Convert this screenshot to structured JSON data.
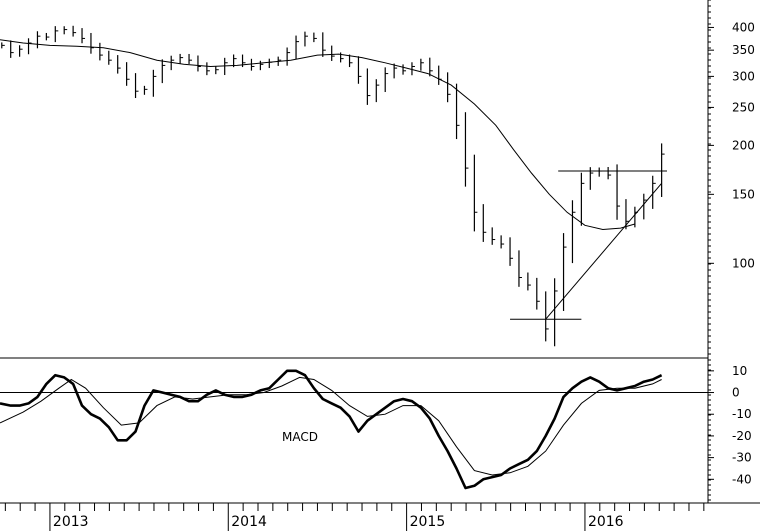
{
  "chart_data": [
    {
      "type": "ohlc-bar",
      "y_scale": "log",
      "ylim": [
        58,
        470
      ],
      "y_ticks": [
        100,
        150,
        200,
        250,
        300,
        350,
        400
      ],
      "x_range": [
        2012.72,
        2016.69
      ],
      "series": [
        {
          "style": "weekly-bars",
          "points": [
            [
              2012.73,
              360
            ],
            [
              2012.78,
              345
            ],
            [
              2012.83,
              352
            ],
            [
              2012.88,
              365
            ],
            [
              2012.93,
              380
            ],
            [
              2012.98,
              378
            ],
            [
              2013.03,
              392
            ],
            [
              2013.08,
              395
            ],
            [
              2013.13,
              388
            ],
            [
              2013.18,
              375
            ],
            [
              2013.23,
              355
            ],
            [
              2013.28,
              340
            ],
            [
              2013.33,
              330
            ],
            [
              2013.38,
              315
            ],
            [
              2013.43,
              295
            ],
            [
              2013.48,
              275
            ],
            [
              2013.53,
              278
            ],
            [
              2013.58,
              300
            ],
            [
              2013.63,
              320
            ],
            [
              2013.68,
              330
            ],
            [
              2013.73,
              335
            ],
            [
              2013.78,
              330
            ],
            [
              2013.83,
              318
            ],
            [
              2013.88,
              310
            ],
            [
              2013.93,
              312
            ],
            [
              2013.98,
              325
            ],
            [
              2014.03,
              333
            ],
            [
              2014.08,
              325
            ],
            [
              2014.13,
              318
            ],
            [
              2014.18,
              322
            ],
            [
              2014.23,
              326
            ],
            [
              2014.28,
              330
            ],
            [
              2014.33,
              345
            ],
            [
              2014.38,
              368
            ],
            [
              2014.43,
              380
            ],
            [
              2014.48,
              375
            ],
            [
              2014.53,
              350
            ],
            [
              2014.58,
              338
            ],
            [
              2014.63,
              333
            ],
            [
              2014.68,
              325
            ],
            [
              2014.73,
              300
            ],
            [
              2014.78,
              268
            ],
            [
              2014.83,
              285
            ],
            [
              2014.88,
              305
            ],
            [
              2014.93,
              315
            ],
            [
              2014.98,
              310
            ],
            [
              2015.03,
              318
            ],
            [
              2015.08,
              325
            ],
            [
              2015.13,
              310
            ],
            [
              2015.18,
              295
            ],
            [
              2015.23,
              270
            ],
            [
              2015.28,
              225
            ],
            [
              2015.33,
              175
            ],
            [
              2015.38,
              135
            ],
            [
              2015.43,
              120
            ],
            [
              2015.48,
              115
            ],
            [
              2015.53,
              112
            ],
            [
              2015.58,
              103
            ],
            [
              2015.63,
              92
            ],
            [
              2015.68,
              88
            ],
            [
              2015.73,
              80
            ],
            [
              2015.78,
              68
            ],
            [
              2015.83,
              85
            ],
            [
              2015.88,
              110
            ],
            [
              2015.93,
              135
            ],
            [
              2015.98,
              160
            ],
            [
              2016.03,
              170
            ],
            [
              2016.08,
              172
            ],
            [
              2016.13,
              168
            ],
            [
              2016.18,
              140
            ],
            [
              2016.23,
              128
            ],
            [
              2016.28,
              135
            ],
            [
              2016.33,
              145
            ],
            [
              2016.38,
              160
            ],
            [
              2016.43,
              190
            ]
          ]
        },
        {
          "style": "moving-average",
          "points": [
            [
              2012.72,
              372
            ],
            [
              2012.85,
              365
            ],
            [
              2013.0,
              360
            ],
            [
              2013.15,
              358
            ],
            [
              2013.3,
              355
            ],
            [
              2013.45,
              345
            ],
            [
              2013.6,
              330
            ],
            [
              2013.75,
              322
            ],
            [
              2013.9,
              318
            ],
            [
              2014.05,
              320
            ],
            [
              2014.2,
              325
            ],
            [
              2014.35,
              330
            ],
            [
              2014.5,
              340
            ],
            [
              2014.62,
              342
            ],
            [
              2014.75,
              335
            ],
            [
              2014.88,
              325
            ],
            [
              2015.0,
              315
            ],
            [
              2015.12,
              305
            ],
            [
              2015.25,
              285
            ],
            [
              2015.38,
              255
            ],
            [
              2015.5,
              225
            ],
            [
              2015.6,
              195
            ],
            [
              2015.7,
              170
            ],
            [
              2015.8,
              150
            ],
            [
              2015.9,
              135
            ],
            [
              2016.0,
              125
            ],
            [
              2016.1,
              122
            ],
            [
              2016.2,
              123
            ],
            [
              2016.28,
              126
            ]
          ]
        }
      ],
      "annotations": {
        "horizontal_lines": [
          {
            "y": 72,
            "x": [
              2015.58,
              2015.98
            ]
          },
          {
            "y": 172,
            "x": [
              2015.85,
              2016.46
            ]
          }
        ],
        "trendline": {
          "from": [
            2015.78,
            72
          ],
          "to": [
            2016.43,
            160
          ]
        }
      }
    },
    {
      "type": "line",
      "label": "MACD",
      "ylim": [
        -50,
        15
      ],
      "y_ticks": [
        10,
        0,
        -10,
        -20,
        -30,
        -40
      ],
      "x_range": [
        2012.72,
        2016.69
      ],
      "series": [
        {
          "style": "macd",
          "points": [
            [
              2012.72,
              -5
            ],
            [
              2012.78,
              -6
            ],
            [
              2012.83,
              -6
            ],
            [
              2012.88,
              -5
            ],
            [
              2012.93,
              -2
            ],
            [
              2012.98,
              4
            ],
            [
              2013.03,
              8
            ],
            [
              2013.08,
              7
            ],
            [
              2013.13,
              4
            ],
            [
              2013.18,
              -6
            ],
            [
              2013.23,
              -10
            ],
            [
              2013.28,
              -12
            ],
            [
              2013.33,
              -16
            ],
            [
              2013.38,
              -22
            ],
            [
              2013.43,
              -22
            ],
            [
              2013.48,
              -18
            ],
            [
              2013.53,
              -6
            ],
            [
              2013.58,
              1
            ],
            [
              2013.63,
              0
            ],
            [
              2013.68,
              -1
            ],
            [
              2013.73,
              -2
            ],
            [
              2013.78,
              -4
            ],
            [
              2013.83,
              -4
            ],
            [
              2013.88,
              -1
            ],
            [
              2013.93,
              1
            ],
            [
              2013.98,
              -1
            ],
            [
              2014.03,
              -2
            ],
            [
              2014.08,
              -2
            ],
            [
              2014.13,
              -1
            ],
            [
              2014.18,
              1
            ],
            [
              2014.23,
              2
            ],
            [
              2014.28,
              6
            ],
            [
              2014.33,
              10
            ],
            [
              2014.38,
              10
            ],
            [
              2014.43,
              8
            ],
            [
              2014.48,
              2
            ],
            [
              2014.53,
              -3
            ],
            [
              2014.58,
              -5
            ],
            [
              2014.63,
              -7
            ],
            [
              2014.68,
              -11
            ],
            [
              2014.73,
              -18
            ],
            [
              2014.78,
              -13
            ],
            [
              2014.83,
              -10
            ],
            [
              2014.88,
              -7
            ],
            [
              2014.93,
              -4
            ],
            [
              2014.98,
              -3
            ],
            [
              2015.03,
              -4
            ],
            [
              2015.08,
              -7
            ],
            [
              2015.13,
              -12
            ],
            [
              2015.18,
              -20
            ],
            [
              2015.23,
              -27
            ],
            [
              2015.28,
              -35
            ],
            [
              2015.33,
              -44
            ],
            [
              2015.38,
              -43
            ],
            [
              2015.43,
              -40
            ],
            [
              2015.48,
              -39
            ],
            [
              2015.53,
              -38
            ],
            [
              2015.58,
              -35
            ],
            [
              2015.63,
              -33
            ],
            [
              2015.68,
              -31
            ],
            [
              2015.73,
              -27
            ],
            [
              2015.78,
              -20
            ],
            [
              2015.83,
              -12
            ],
            [
              2015.88,
              -2
            ],
            [
              2015.93,
              2
            ],
            [
              2015.98,
              5
            ],
            [
              2016.03,
              7
            ],
            [
              2016.08,
              5
            ],
            [
              2016.13,
              2
            ],
            [
              2016.18,
              1
            ],
            [
              2016.23,
              2
            ],
            [
              2016.28,
              3
            ],
            [
              2016.33,
              5
            ],
            [
              2016.38,
              6
            ],
            [
              2016.43,
              8
            ]
          ]
        },
        {
          "style": "signal",
          "points": [
            [
              2012.72,
              -14
            ],
            [
              2012.85,
              -9
            ],
            [
              2012.95,
              -4
            ],
            [
              2013.05,
              2
            ],
            [
              2013.12,
              6
            ],
            [
              2013.2,
              2
            ],
            [
              2013.3,
              -7
            ],
            [
              2013.4,
              -15
            ],
            [
              2013.5,
              -14
            ],
            [
              2013.6,
              -6
            ],
            [
              2013.7,
              -2
            ],
            [
              2013.8,
              -3
            ],
            [
              2013.9,
              -2
            ],
            [
              2014.0,
              -1
            ],
            [
              2014.1,
              -1
            ],
            [
              2014.2,
              0
            ],
            [
              2014.3,
              3
            ],
            [
              2014.4,
              7
            ],
            [
              2014.48,
              6
            ],
            [
              2014.58,
              1
            ],
            [
              2014.68,
              -6
            ],
            [
              2014.78,
              -11
            ],
            [
              2014.88,
              -10
            ],
            [
              2014.98,
              -6
            ],
            [
              2015.08,
              -6
            ],
            [
              2015.18,
              -13
            ],
            [
              2015.28,
              -25
            ],
            [
              2015.38,
              -36
            ],
            [
              2015.48,
              -38
            ],
            [
              2015.58,
              -37
            ],
            [
              2015.68,
              -34
            ],
            [
              2015.78,
              -27
            ],
            [
              2015.88,
              -15
            ],
            [
              2015.98,
              -5
            ],
            [
              2016.08,
              1
            ],
            [
              2016.18,
              2
            ],
            [
              2016.28,
              2
            ],
            [
              2016.38,
              4
            ],
            [
              2016.43,
              6
            ]
          ]
        }
      ],
      "reference_line": 0
    }
  ],
  "x_axis": {
    "year_labels": [
      {
        "label": "2013",
        "x": 2013.0
      },
      {
        "label": "2014",
        "x": 2014.0
      },
      {
        "label": "2015",
        "x": 2015.0
      },
      {
        "label": "2016",
        "x": 2016.0
      }
    ]
  },
  "labels": {
    "macd": "MACD"
  },
  "colors": {
    "ink": "#000000",
    "background": "#ffffff"
  }
}
